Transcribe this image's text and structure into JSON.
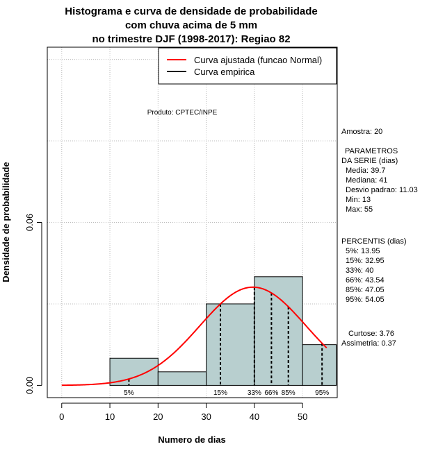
{
  "title_lines": [
    "Histograma e curva de densidade de probabilidade",
    "com chuva acima de 5 mm",
    "no trimestre DJF (1998-2017): Regiao 82"
  ],
  "product_note": "Produto: CPTEC/INPE",
  "chart_data": {
    "type": "bar",
    "xlabel": "Numero de dias",
    "ylabel": "Densidade de probabilidade",
    "xlim": [
      -3,
      57.2
    ],
    "ylim": [
      -0.0045,
      0.1245
    ],
    "x_ticks": [
      0,
      10,
      20,
      30,
      40,
      50
    ],
    "y_ticks": [
      0.0,
      0.06
    ],
    "y_tick_labels": [
      "0.00",
      "0.06"
    ],
    "grid": true,
    "legend_position": "top-right",
    "legend": [
      {
        "label": "Curva ajustada (funcao Normal)",
        "color": "#ff0000"
      },
      {
        "label": "Curva empirica",
        "color": "#000000"
      }
    ],
    "bins": [
      {
        "start": 10,
        "end": 20,
        "density": 0.01
      },
      {
        "start": 20,
        "end": 30,
        "density": 0.005
      },
      {
        "start": 30,
        "end": 40,
        "density": 0.03
      },
      {
        "start": 40,
        "end": 50,
        "density": 0.04
      },
      {
        "start": 50,
        "end": 57,
        "density": 0.015
      }
    ],
    "bar_color": "#b8cfcf",
    "normal_fit": {
      "mean": 39.7,
      "sd": 11.03,
      "x_range": [
        0,
        55
      ],
      "color": "#ff0000"
    },
    "percentiles": [
      {
        "label": "5%",
        "value": 13.95
      },
      {
        "label": "15%",
        "value": 32.95
      },
      {
        "label": "33%",
        "value": 40
      },
      {
        "label": "66%",
        "value": 43.54
      },
      {
        "label": "85%",
        "value": 47.05
      },
      {
        "label": "95%",
        "value": 54.05
      }
    ]
  },
  "stats": {
    "amostra": "Amostra: 20",
    "params_title_1": "PARAMETROS",
    "params_title_2": "DA SERIE (dias)",
    "media": "Media: 39.7",
    "mediana": "Mediana: 41",
    "desvio": "Desvio padrao: 11.03",
    "min": "Min: 13",
    "max": "Max: 55",
    "percentis_title": "PERCENTIS (dias)",
    "p5": "5%: 13.95",
    "p15": "15%: 32.95",
    "p33": "33%: 40",
    "p66": "66%: 43.54",
    "p85": "85%: 47.05",
    "p95": "95%: 54.05",
    "curtose": "Curtose: 3.76",
    "assimetria": "Assimetria: 0.37"
  }
}
